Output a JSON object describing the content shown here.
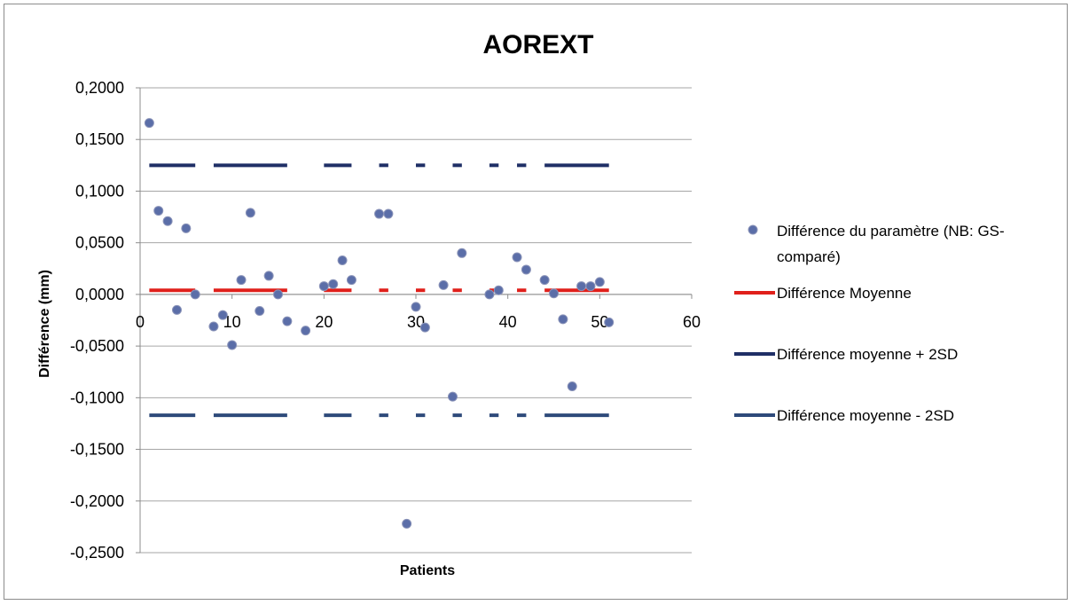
{
  "chart_data": {
    "type": "scatter",
    "title": "AOREXT",
    "xlabel": "Patients",
    "ylabel": "Différence (mm)",
    "xlim": [
      0,
      60
    ],
    "ylim": [
      -0.25,
      0.2
    ],
    "x_ticks": [
      "0",
      "10",
      "20",
      "30",
      "40",
      "50",
      "60"
    ],
    "y_ticks": [
      "0,2000",
      "0,1500",
      "0,1000",
      "0,0500",
      "0,0000",
      "-0,0500",
      "-0,1000",
      "-0,1500",
      "-0,2000",
      "-0,2500"
    ],
    "grid": "horizontal",
    "legend_position": "right",
    "series": [
      {
        "name": "Différence du paramètre (NB: GS-comparé)",
        "kind": "points",
        "color": "#5b6ea8",
        "points": [
          [
            1,
            0.166
          ],
          [
            2,
            0.081
          ],
          [
            3,
            0.071
          ],
          [
            4,
            -0.015
          ],
          [
            5,
            0.064
          ],
          [
            6,
            0.0
          ],
          [
            8,
            -0.031
          ],
          [
            9,
            -0.02
          ],
          [
            10,
            -0.049
          ],
          [
            11,
            0.014
          ],
          [
            12,
            0.079
          ],
          [
            13,
            -0.016
          ],
          [
            14,
            0.018
          ],
          [
            15,
            0.0
          ],
          [
            16,
            -0.026
          ],
          [
            18,
            -0.035
          ],
          [
            20,
            0.008
          ],
          [
            21,
            0.01
          ],
          [
            22,
            0.033
          ],
          [
            23,
            0.014
          ],
          [
            26,
            0.078
          ],
          [
            27,
            0.078
          ],
          [
            29,
            -0.222
          ],
          [
            30,
            -0.012
          ],
          [
            31,
            -0.032
          ],
          [
            33,
            0.009
          ],
          [
            34,
            -0.099
          ],
          [
            35,
            0.04
          ],
          [
            38,
            0.0
          ],
          [
            39,
            0.004
          ],
          [
            41,
            0.036
          ],
          [
            42,
            0.024
          ],
          [
            44,
            0.014
          ],
          [
            45,
            0.001
          ],
          [
            46,
            -0.024
          ],
          [
            47,
            -0.089
          ],
          [
            48,
            0.008
          ],
          [
            49,
            0.008
          ],
          [
            50,
            0.012
          ],
          [
            51,
            -0.027
          ]
        ]
      },
      {
        "name": "Différence Moyenne",
        "kind": "dashed-line",
        "color": "#e0201b",
        "y": 0.004,
        "segments": [
          [
            1,
            6
          ],
          [
            8,
            16
          ],
          [
            20,
            23
          ],
          [
            26,
            27
          ],
          [
            30,
            31
          ],
          [
            34,
            35
          ],
          [
            38,
            39
          ],
          [
            41,
            42
          ],
          [
            44,
            51
          ]
        ]
      },
      {
        "name": "Différence moyenne + 2SD",
        "kind": "dashed-line",
        "color": "#1f2f66",
        "y": 0.125,
        "segments": [
          [
            1,
            6
          ],
          [
            8,
            16
          ],
          [
            20,
            23
          ],
          [
            26,
            27
          ],
          [
            30,
            31
          ],
          [
            34,
            35
          ],
          [
            38,
            39
          ],
          [
            41,
            42
          ],
          [
            44,
            51
          ]
        ]
      },
      {
        "name": "Différence moyenne - 2SD",
        "kind": "dashed-line",
        "color": "#2e4a7a",
        "y": -0.117,
        "segments": [
          [
            1,
            6
          ],
          [
            8,
            16
          ],
          [
            20,
            23
          ],
          [
            26,
            27
          ],
          [
            30,
            31
          ],
          [
            34,
            35
          ],
          [
            38,
            39
          ],
          [
            41,
            42
          ],
          [
            44,
            51
          ]
        ]
      }
    ]
  }
}
